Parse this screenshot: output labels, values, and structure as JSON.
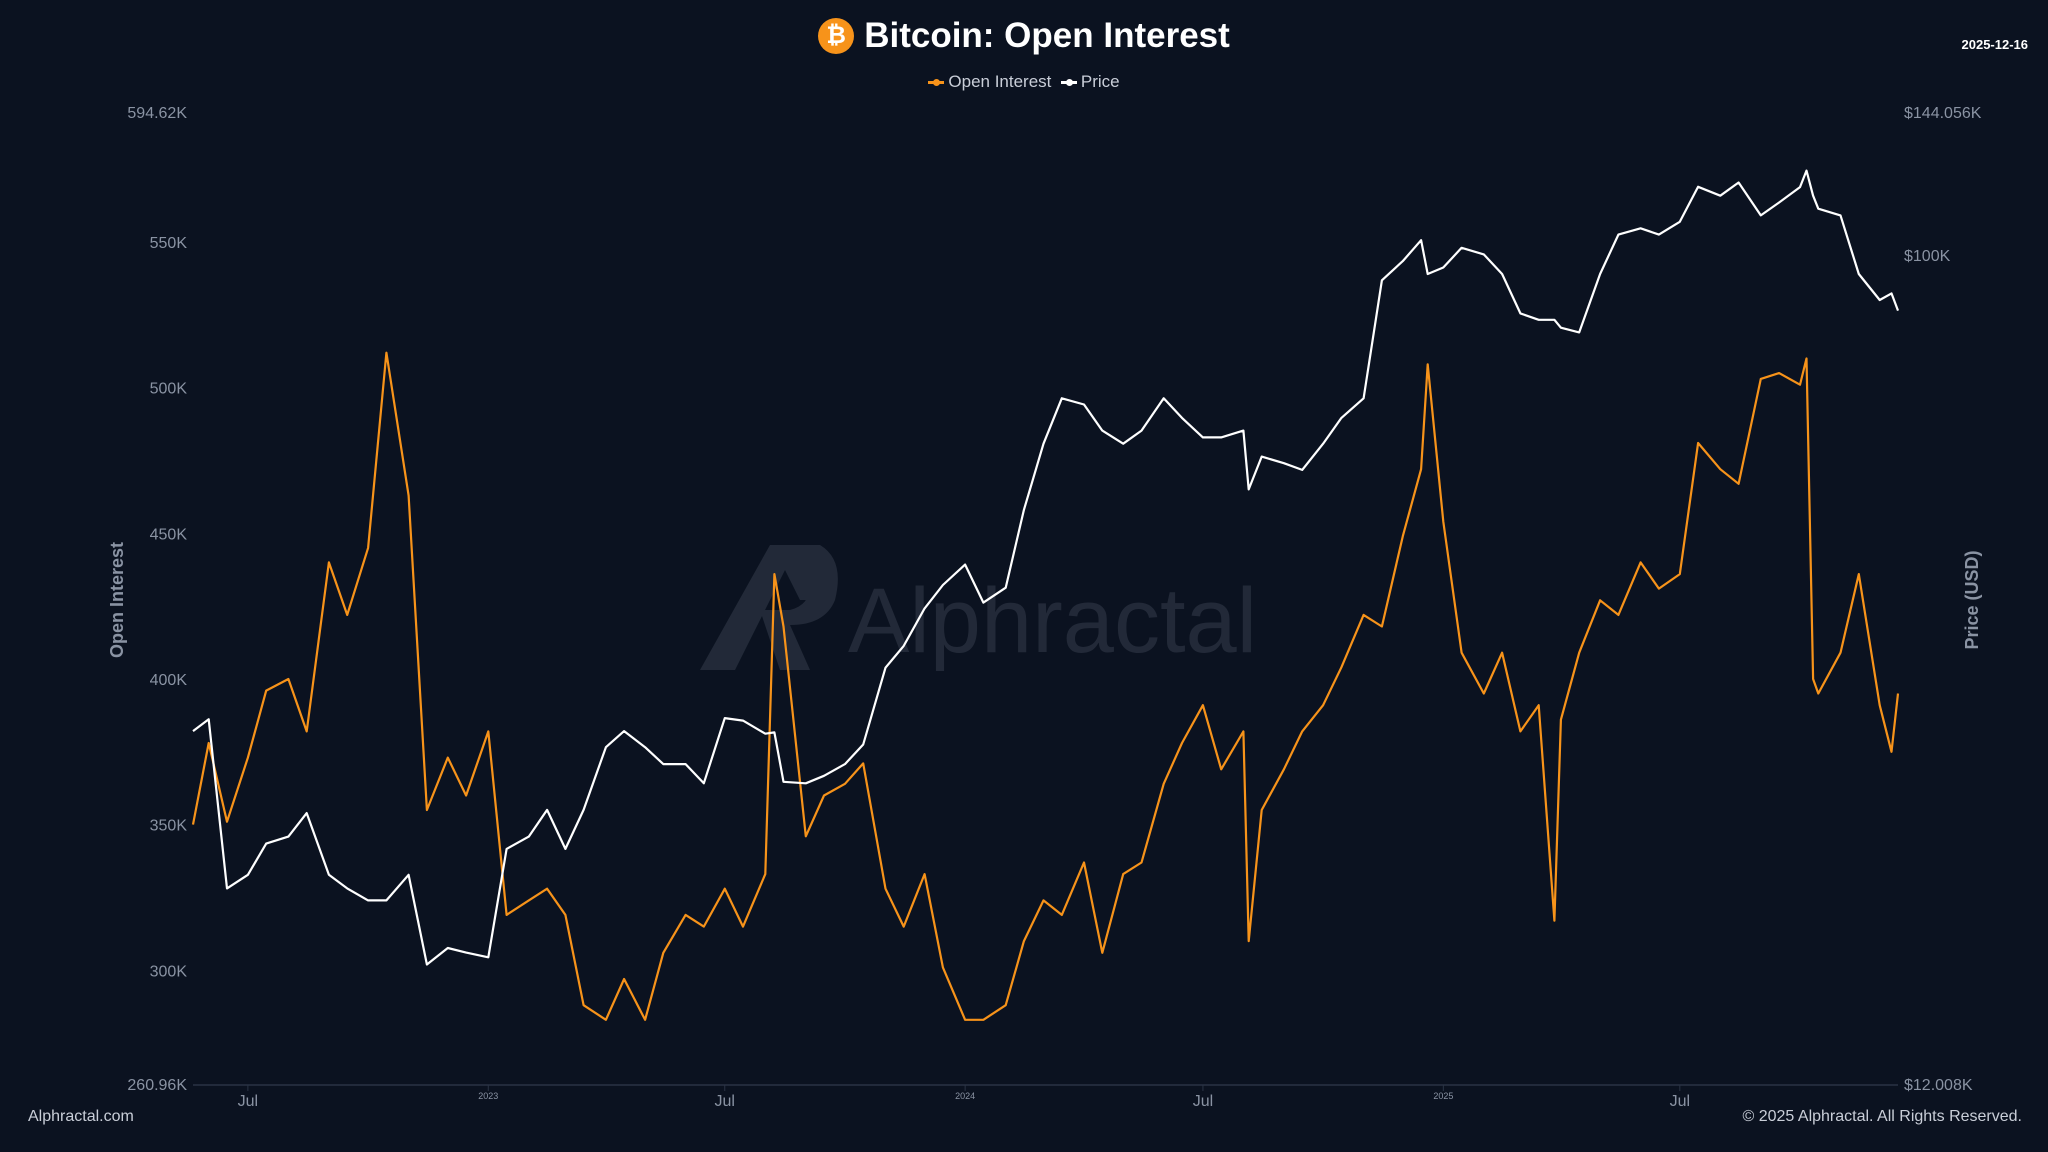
{
  "header": {
    "title": "Bitcoin: Open Interest",
    "icon": "bitcoin-icon",
    "date": "2025-12-16"
  },
  "footer": {
    "left": "Alphractal.com",
    "right": "© 2025 Alphractal. All Rights Reserved."
  },
  "watermark": "Alphractal",
  "colors": {
    "background": "#0b1220",
    "open_interest": "#f7931a",
    "price": "#ffffff"
  },
  "chart_data": {
    "type": "line",
    "title": "Bitcoin: Open Interest",
    "legend": [
      "Open Interest",
      "Price"
    ],
    "legend_position": "top-center",
    "grid": false,
    "y_left": {
      "label": "Open Interest",
      "range": [
        260.96,
        594.62
      ],
      "unit": "K",
      "ticks": [
        "594.62K",
        "550K",
        "500K",
        "450K",
        "400K",
        "350K",
        "300K",
        "260.96K"
      ],
      "tick_values": [
        594.62,
        550,
        500,
        450,
        400,
        350,
        300,
        260.96
      ]
    },
    "y_right": {
      "label": "Price (USD)",
      "scale": "log",
      "range": [
        12.008,
        144.056
      ],
      "unit": "K USD",
      "ticks": [
        "$144.056K",
        "$100K",
        "$12.008K"
      ],
      "tick_values": [
        144.056,
        100,
        12.008
      ]
    },
    "x_ticks": [
      {
        "date": "2022-07-01",
        "label": "Jul",
        "major": false
      },
      {
        "date": "2023-01-01",
        "label": "2023",
        "major": true
      },
      {
        "date": "2023-07-01",
        "label": "Jul",
        "major": false
      },
      {
        "date": "2024-01-01",
        "label": "2024",
        "major": true
      },
      {
        "date": "2024-07-01",
        "label": "Jul",
        "major": false
      },
      {
        "date": "2025-01-01",
        "label": "2025",
        "major": true
      },
      {
        "date": "2025-07-01",
        "label": "Jul",
        "major": false
      }
    ],
    "x": [
      "2022-05-20",
      "2022-06-01",
      "2022-06-15",
      "2022-07-01",
      "2022-07-15",
      "2022-08-01",
      "2022-08-15",
      "2022-09-01",
      "2022-09-15",
      "2022-10-01",
      "2022-10-15",
      "2022-11-01",
      "2022-11-15",
      "2022-12-01",
      "2022-12-15",
      "2023-01-01",
      "2023-01-15",
      "2023-02-01",
      "2023-02-15",
      "2023-03-01",
      "2023-03-15",
      "2023-04-01",
      "2023-04-15",
      "2023-05-01",
      "2023-05-15",
      "2023-06-01",
      "2023-06-15",
      "2023-07-01",
      "2023-07-15",
      "2023-08-01",
      "2023-08-08",
      "2023-08-15",
      "2023-09-01",
      "2023-09-15",
      "2023-10-01",
      "2023-10-15",
      "2023-11-01",
      "2023-11-15",
      "2023-12-01",
      "2023-12-15",
      "2024-01-01",
      "2024-01-15",
      "2024-02-01",
      "2024-02-15",
      "2024-03-01",
      "2024-03-15",
      "2024-04-01",
      "2024-04-15",
      "2024-05-01",
      "2024-05-15",
      "2024-06-01",
      "2024-06-15",
      "2024-07-01",
      "2024-07-15",
      "2024-08-01",
      "2024-08-05",
      "2024-08-15",
      "2024-09-01",
      "2024-09-15",
      "2024-10-01",
      "2024-10-15",
      "2024-11-01",
      "2024-11-15",
      "2024-12-01",
      "2024-12-15",
      "2024-12-20",
      "2025-01-01",
      "2025-01-15",
      "2025-02-01",
      "2025-02-15",
      "2025-03-01",
      "2025-03-15",
      "2025-03-27",
      "2025-04-01",
      "2025-04-15",
      "2025-05-01",
      "2025-05-15",
      "2025-06-01",
      "2025-06-15",
      "2025-07-01",
      "2025-07-15",
      "2025-08-01",
      "2025-08-15",
      "2025-09-01",
      "2025-09-15",
      "2025-10-01",
      "2025-10-06",
      "2025-10-11",
      "2025-10-15",
      "2025-11-01",
      "2025-11-15",
      "2025-12-01",
      "2025-12-10",
      "2025-12-15"
    ],
    "series": [
      {
        "name": "Open Interest",
        "axis": "left",
        "color": "#f7931a",
        "values": [
          350,
          378,
          351,
          373,
          396,
          400,
          382,
          440,
          422,
          445,
          512,
          463,
          355,
          373,
          360,
          382,
          319,
          324,
          328,
          319,
          288,
          283,
          297,
          283,
          306,
          319,
          315,
          328,
          315,
          333,
          436,
          418,
          346,
          360,
          364,
          371,
          328,
          315,
          333,
          301,
          283,
          283,
          288,
          310,
          324,
          319,
          337,
          306,
          333,
          337,
          364,
          378,
          391,
          369,
          382,
          310,
          355,
          369,
          382,
          391,
          404,
          422,
          418,
          449,
          472,
          508,
          454,
          409,
          395,
          409,
          382,
          391,
          317,
          386,
          409,
          427,
          422,
          440,
          431,
          436,
          481,
          472,
          467,
          503,
          505,
          501,
          510,
          400,
          395,
          409,
          436,
          391,
          375,
          395
        ]
      },
      {
        "name": "Price",
        "axis": "right",
        "color": "#ffffff",
        "values": [
          29.6,
          30.5,
          19.8,
          20.5,
          22.2,
          22.6,
          24.0,
          20.5,
          19.8,
          19.2,
          19.2,
          20.5,
          16.3,
          17.0,
          16.8,
          16.6,
          21.9,
          22.6,
          24.2,
          21.9,
          24.2,
          28.4,
          29.6,
          28.4,
          27.2,
          27.2,
          25.9,
          30.6,
          30.4,
          29.4,
          29.5,
          26.0,
          25.9,
          26.4,
          27.2,
          28.6,
          34.8,
          36.8,
          40.5,
          43.0,
          45.3,
          41.1,
          42.7,
          52.1,
          61.7,
          69.3,
          68.2,
          63.8,
          61.7,
          63.8,
          69.3,
          65.9,
          62.7,
          62.7,
          63.8,
          54.9,
          59.7,
          58.7,
          57.7,
          61.7,
          65.9,
          69.3,
          93.7,
          98.4,
          103.8,
          95.2,
          96.8,
          101.8,
          100.1,
          95.2,
          86.1,
          84.7,
          84.7,
          83.0,
          82.0,
          95.2,
          105.3,
          107.0,
          105.3,
          108.8,
          119.0,
          116.3,
          120.3,
          110.6,
          114.3,
          118.9,
          124.0,
          116.3,
          112.5,
          110.6,
          95.2,
          89.1,
          90.6,
          86.7
        ]
      }
    ]
  }
}
